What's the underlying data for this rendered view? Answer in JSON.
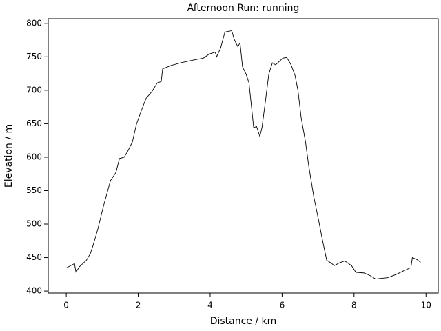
{
  "chart_data": {
    "type": "line",
    "title": "Afternoon Run: running",
    "x_label": "Distance / km",
    "y_label": "Elevation / m",
    "x": [
      0,
      0.23,
      0.27,
      0.36,
      0.56,
      0.67,
      0.75,
      0.88,
      1.03,
      1.23,
      1.38,
      1.48,
      1.61,
      1.72,
      1.84,
      1.95,
      2.09,
      2.22,
      2.38,
      2.53,
      2.64,
      2.68,
      2.91,
      3.18,
      3.52,
      3.81,
      3.97,
      4.14,
      4.18,
      4.29,
      4.41,
      4.6,
      4.67,
      4.77,
      4.83,
      4.9,
      5.0,
      5.08,
      5.21,
      5.29,
      5.38,
      5.44,
      5.54,
      5.63,
      5.73,
      5.82,
      5.92,
      6.02,
      6.13,
      6.25,
      6.36,
      6.44,
      6.53,
      6.65,
      6.74,
      6.88,
      7.01,
      7.13,
      7.24,
      7.36,
      7.45,
      7.59,
      7.74,
      7.93,
      8.05,
      8.28,
      8.45,
      8.6,
      8.74,
      8.93,
      9.18,
      9.37,
      9.58,
      9.62,
      9.75,
      9.85
    ],
    "series": [
      {
        "name": "Elevation",
        "color": "#000000",
        "values": [
          434.5,
          441,
          428,
          436,
          446,
          456,
          469,
          493,
          526,
          565,
          577,
          598,
          600,
          610,
          623,
          649,
          670,
          688,
          698,
          711,
          713,
          732,
          737,
          741,
          745,
          748,
          754,
          757,
          750,
          763,
          787,
          789,
          776,
          765,
          771,
          735,
          724,
          711,
          644,
          646,
          631,
          644,
          685,
          724,
          741,
          738,
          743,
          748,
          749,
          738,
          722,
          700,
          659,
          623,
          587,
          541,
          507,
          474,
          446,
          442,
          438,
          442,
          445,
          438,
          428,
          427,
          423,
          418,
          419,
          420,
          425,
          430,
          435,
          450,
          447,
          443
        ]
      }
    ],
    "xlim": [
      -0.5,
      10.34
    ],
    "ylim": [
      397,
      807
    ],
    "xticks": [
      0,
      2,
      4,
      6,
      8,
      10
    ],
    "yticks": [
      400,
      450,
      500,
      550,
      600,
      650,
      700,
      750,
      800
    ],
    "grid": false
  }
}
